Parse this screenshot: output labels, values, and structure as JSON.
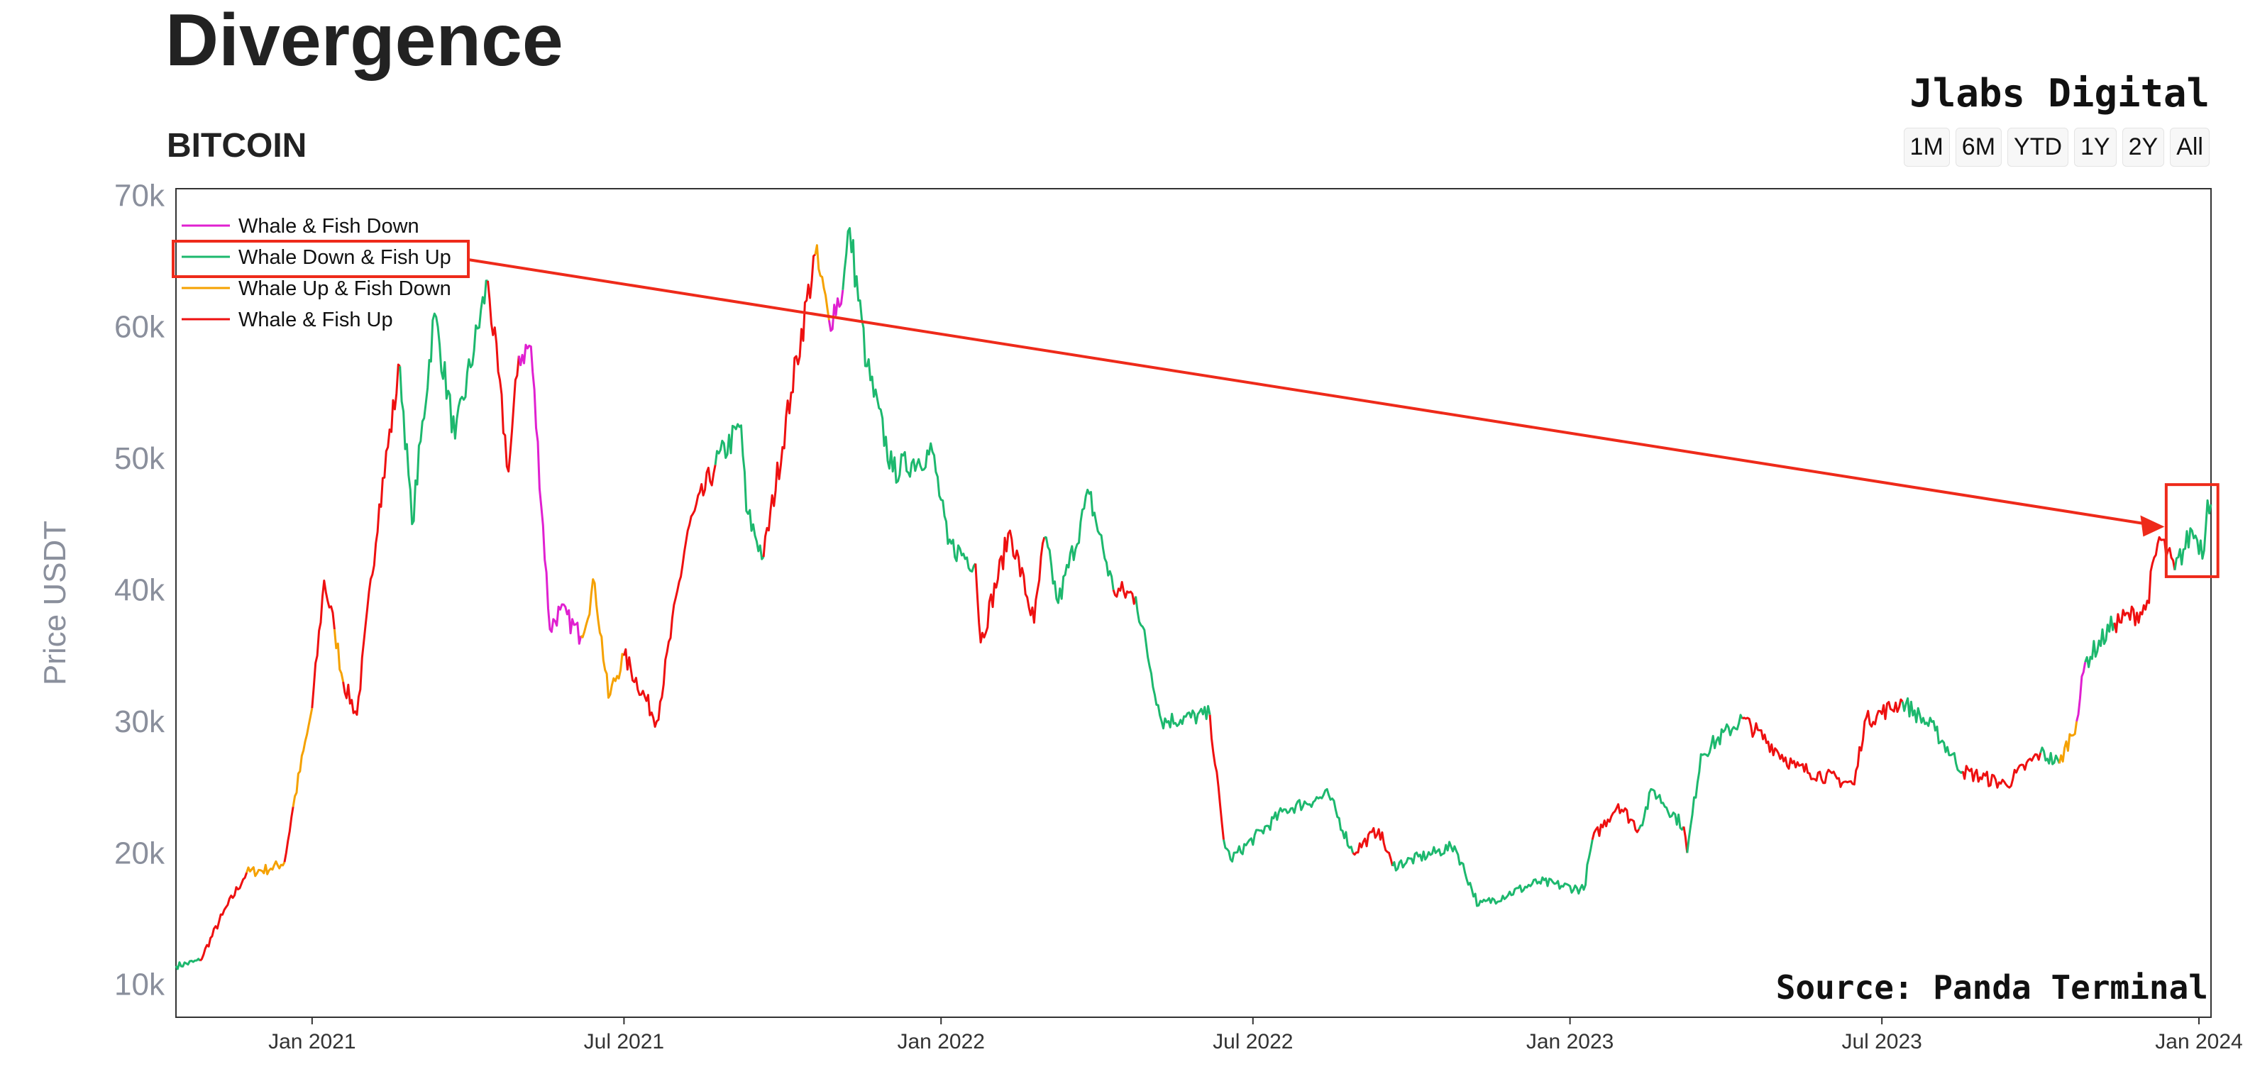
{
  "header": {
    "title": "Divergence",
    "subtitle": "BITCOIN",
    "brand": "Jlabs Digital",
    "ranges": [
      "1M",
      "6M",
      "YTD",
      "1Y",
      "2Y",
      "All"
    ]
  },
  "source": "Source: Panda Terminal",
  "colors": {
    "whale_fish_down": "#e020d0",
    "whale_down_fish_up": "#1db86e",
    "whale_up_fish_down": "#f5a100",
    "whale_fish_up": "#ee1010",
    "annotation": "#ee2a1a"
  },
  "chart_data": {
    "type": "line",
    "title": "BITCOIN",
    "ylabel": "Price USDT",
    "xlabel": "",
    "ylim": [
      7500,
      70500
    ],
    "yticks": [
      10000,
      20000,
      30000,
      40000,
      50000,
      60000,
      70000
    ],
    "ytick_labels": [
      "10k",
      "20k",
      "30k",
      "40k",
      "50k",
      "60k",
      "70k"
    ],
    "xlim": [
      "2020-10-14",
      "2024-01-08"
    ],
    "xticks": [
      "2021-01-01",
      "2021-07-01",
      "2022-01-01",
      "2022-07-01",
      "2023-01-01",
      "2023-07-01",
      "2024-01-01"
    ],
    "xtick_labels": [
      "Jan 2021",
      "Jul 2021",
      "Jan 2022",
      "Jul 2022",
      "Jan 2023",
      "Jul 2023",
      "Jan 2024"
    ],
    "legend_position": "top-left",
    "series": [
      {
        "name": "Whale & Fish Down",
        "color": "#e020d0"
      },
      {
        "name": "Whale Down & Fish Up",
        "color": "#1db86e"
      },
      {
        "name": "Whale Up & Fish Down",
        "color": "#f5a100"
      },
      {
        "name": "Whale & Fish Up",
        "color": "#ee1010"
      }
    ],
    "segments": [
      {
        "series": "Whale Down & Fish Up",
        "points": [
          [
            "2020-10-14",
            11400
          ],
          [
            "2020-10-28",
            11800
          ]
        ]
      },
      {
        "series": "Whale & Fish Up",
        "points": [
          [
            "2020-10-28",
            11800
          ],
          [
            "2020-11-10",
            15300
          ],
          [
            "2020-11-24",
            18500
          ]
        ]
      },
      {
        "series": "Whale Up & Fish Down",
        "points": [
          [
            "2020-11-24",
            18500
          ],
          [
            "2020-12-08",
            18800
          ],
          [
            "2020-12-16",
            19300
          ]
        ]
      },
      {
        "series": "Whale & Fish Up",
        "points": [
          [
            "2020-12-16",
            19300
          ],
          [
            "2020-12-21",
            23500
          ]
        ]
      },
      {
        "series": "Whale Up & Fish Down",
        "points": [
          [
            "2020-12-21",
            23500
          ],
          [
            "2020-12-29",
            29000
          ],
          [
            "2021-01-01",
            31000
          ]
        ]
      },
      {
        "series": "Whale & Fish Up",
        "points": [
          [
            "2021-01-01",
            31000
          ],
          [
            "2021-01-08",
            40700
          ],
          [
            "2021-01-14",
            37000
          ]
        ]
      },
      {
        "series": "Whale Up & Fish Down",
        "points": [
          [
            "2021-01-14",
            37000
          ],
          [
            "2021-01-19",
            33000
          ]
        ]
      },
      {
        "series": "Whale & Fish Up",
        "points": [
          [
            "2021-01-19",
            33000
          ],
          [
            "2021-01-27",
            30500
          ],
          [
            "2021-02-09",
            46500
          ],
          [
            "2021-02-21",
            57000
          ]
        ]
      },
      {
        "series": "Whale Down & Fish Up",
        "points": [
          [
            "2021-02-21",
            57000
          ],
          [
            "2021-02-28",
            45000
          ],
          [
            "2021-03-13",
            61000
          ],
          [
            "2021-03-25",
            51500
          ],
          [
            "2021-04-13",
            63500
          ]
        ]
      },
      {
        "series": "Whale & Fish Up",
        "points": [
          [
            "2021-04-13",
            63500
          ],
          [
            "2021-04-25",
            49000
          ],
          [
            "2021-05-01",
            57800
          ]
        ]
      },
      {
        "series": "Whale & Fish Down",
        "points": [
          [
            "2021-05-01",
            57800
          ],
          [
            "2021-05-08",
            58500
          ],
          [
            "2021-05-19",
            37000
          ],
          [
            "2021-05-25",
            38500
          ],
          [
            "2021-06-06",
            36500
          ]
        ]
      },
      {
        "series": "Whale Up & Fish Down",
        "points": [
          [
            "2021-06-06",
            36500
          ],
          [
            "2021-06-14",
            40500
          ],
          [
            "2021-06-22",
            31800
          ],
          [
            "2021-07-01",
            35000
          ]
        ]
      },
      {
        "series": "Whale & Fish Up",
        "points": [
          [
            "2021-07-01",
            35000
          ],
          [
            "2021-07-20",
            30000
          ],
          [
            "2021-08-07",
            44500
          ],
          [
            "2021-08-23",
            49500
          ]
        ]
      },
      {
        "series": "Whale Down & Fish Up",
        "points": [
          [
            "2021-08-23",
            49500
          ],
          [
            "2021-09-07",
            52500
          ],
          [
            "2021-09-10",
            46000
          ],
          [
            "2021-09-20",
            42500
          ]
        ]
      },
      {
        "series": "Whale & Fish Up",
        "points": [
          [
            "2021-09-20",
            42500
          ],
          [
            "2021-10-06",
            55000
          ],
          [
            "2021-10-20",
            65500
          ]
        ]
      },
      {
        "series": "Whale Up & Fish Down",
        "points": [
          [
            "2021-10-20",
            65500
          ],
          [
            "2021-10-28",
            60500
          ]
        ]
      },
      {
        "series": "Whale & Fish Down",
        "points": [
          [
            "2021-10-28",
            60500
          ],
          [
            "2021-11-05",
            62800
          ]
        ]
      },
      {
        "series": "Whale Down & Fish Up",
        "points": [
          [
            "2021-11-05",
            62800
          ],
          [
            "2021-11-09",
            67500
          ],
          [
            "2021-11-19",
            57000
          ],
          [
            "2021-12-04",
            49000
          ],
          [
            "2021-12-27",
            50500
          ],
          [
            "2022-01-05",
            43500
          ],
          [
            "2022-01-21",
            42000
          ]
        ]
      },
      {
        "series": "Whale & Fish Up",
        "points": [
          [
            "2022-01-21",
            42000
          ],
          [
            "2022-01-24",
            36000
          ],
          [
            "2022-02-10",
            44500
          ],
          [
            "2022-02-24",
            37500
          ],
          [
            "2022-03-02",
            44000
          ]
        ]
      },
      {
        "series": "Whale Down & Fish Up",
        "points": [
          [
            "2022-03-02",
            44000
          ],
          [
            "2022-03-10",
            39000
          ],
          [
            "2022-03-28",
            47300
          ],
          [
            "2022-04-11",
            40000
          ]
        ]
      },
      {
        "series": "Whale & Fish Up",
        "points": [
          [
            "2022-04-11",
            40000
          ],
          [
            "2022-04-24",
            39500
          ]
        ]
      },
      {
        "series": "Whale Down & Fish Up",
        "points": [
          [
            "2022-04-24",
            39500
          ],
          [
            "2022-05-09",
            30000
          ],
          [
            "2022-06-06",
            30500
          ]
        ]
      },
      {
        "series": "Whale & Fish Up",
        "points": [
          [
            "2022-06-06",
            30500
          ],
          [
            "2022-06-14",
            21000
          ]
        ]
      },
      {
        "series": "Whale Down & Fish Up",
        "points": [
          [
            "2022-06-14",
            21000
          ],
          [
            "2022-06-18",
            19500
          ],
          [
            "2022-07-20",
            23300
          ],
          [
            "2022-08-14",
            24400
          ],
          [
            "2022-08-28",
            20000
          ]
        ]
      },
      {
        "series": "Whale & Fish Up",
        "points": [
          [
            "2022-08-28",
            20000
          ],
          [
            "2022-09-12",
            21800
          ],
          [
            "2022-09-20",
            19000
          ]
        ]
      },
      {
        "series": "Whale Down & Fish Up",
        "points": [
          [
            "2022-09-20",
            19000
          ],
          [
            "2022-10-26",
            20500
          ],
          [
            "2022-11-09",
            16000
          ],
          [
            "2022-12-14",
            17800
          ],
          [
            "2023-01-09",
            17200
          ],
          [
            "2023-01-14",
            21000
          ]
        ]
      },
      {
        "series": "Whale & Fish Up",
        "points": [
          [
            "2023-01-14",
            21000
          ],
          [
            "2023-01-29",
            23700
          ],
          [
            "2023-02-10",
            21800
          ]
        ]
      },
      {
        "series": "Whale Down & Fish Up",
        "points": [
          [
            "2023-02-10",
            21800
          ],
          [
            "2023-02-18",
            24800
          ],
          [
            "2023-03-08",
            22000
          ]
        ]
      },
      {
        "series": "Whale & Fish Up",
        "points": [
          [
            "2023-03-08",
            22000
          ],
          [
            "2023-03-10",
            20000
          ]
        ]
      },
      {
        "series": "Whale Down & Fish Up",
        "points": [
          [
            "2023-03-10",
            20000
          ],
          [
            "2023-03-18",
            27500
          ],
          [
            "2023-04-11",
            30200
          ]
        ]
      },
      {
        "series": "Whale & Fish Up",
        "points": [
          [
            "2023-04-11",
            30200
          ],
          [
            "2023-05-12",
            26500
          ],
          [
            "2023-06-15",
            25200
          ],
          [
            "2023-06-21",
            30000
          ],
          [
            "2023-07-13",
            31500
          ]
        ]
      },
      {
        "series": "Whale Down & Fish Up",
        "points": [
          [
            "2023-07-13",
            31500
          ],
          [
            "2023-08-01",
            29300
          ],
          [
            "2023-08-17",
            26200
          ]
        ]
      },
      {
        "series": "Whale & Fish Up",
        "points": [
          [
            "2023-08-17",
            26200
          ],
          [
            "2023-09-11",
            25200
          ],
          [
            "2023-10-01",
            27600
          ]
        ]
      },
      {
        "series": "Whale Down & Fish Up",
        "points": [
          [
            "2023-10-01",
            27600
          ],
          [
            "2023-10-12",
            26800
          ]
        ]
      },
      {
        "series": "Whale Up & Fish Down",
        "points": [
          [
            "2023-10-12",
            26800
          ],
          [
            "2023-10-22",
            30000
          ]
        ]
      },
      {
        "series": "Whale & Fish Down",
        "points": [
          [
            "2023-10-22",
            30000
          ],
          [
            "2023-10-27",
            34500
          ]
        ]
      },
      {
        "series": "Whale Down & Fish Up",
        "points": [
          [
            "2023-10-27",
            34500
          ],
          [
            "2023-11-13",
            37500
          ]
        ]
      },
      {
        "series": "Whale & Fish Up",
        "points": [
          [
            "2023-11-13",
            37500
          ],
          [
            "2023-12-01",
            38500
          ],
          [
            "2023-12-09",
            44000
          ],
          [
            "2023-12-18",
            41500
          ]
        ]
      },
      {
        "series": "Whale Down & Fish Up",
        "points": [
          [
            "2023-12-18",
            41500
          ],
          [
            "2023-12-28",
            44500
          ],
          [
            "2024-01-04",
            43000
          ],
          [
            "2024-01-06",
            46800
          ],
          [
            "2024-01-08",
            46500
          ]
        ]
      }
    ],
    "annotations": [
      {
        "type": "box",
        "target": "legend",
        "label": "Whale Down & Fish Up"
      },
      {
        "type": "box",
        "target": "data",
        "x": [
          "2023-12-13",
          "2024-01-12"
        ],
        "y": [
          41000,
          48000
        ]
      },
      {
        "type": "arrow",
        "from": "legend",
        "to": {
          "x": "2023-12-12",
          "y": 44800
        }
      }
    ]
  }
}
